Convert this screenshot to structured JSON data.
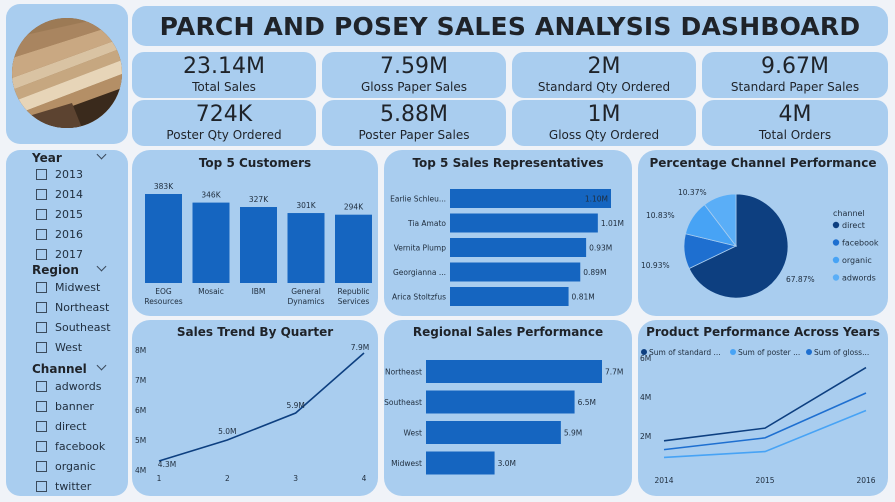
{
  "title": "PARCH AND POSEY SALES ANALYSIS DASHBOARD",
  "kpis": [
    {
      "value": "23.14M",
      "label": "Total Sales"
    },
    {
      "value": "7.59M",
      "label": "Gloss Paper Sales"
    },
    {
      "value": "2M",
      "label": "Standard Qty Ordered"
    },
    {
      "value": "9.67M",
      "label": "Standard Paper Sales"
    },
    {
      "value": "724K",
      "label": "Poster Qty Ordered"
    },
    {
      "value": "5.88M",
      "label": "Poster Paper Sales"
    },
    {
      "value": "1M",
      "label": "Gloss Qty Ordered"
    },
    {
      "value": "4M",
      "label": "Total Orders"
    }
  ],
  "slicers": {
    "year": {
      "title": "Year",
      "options": [
        "2013",
        "2014",
        "2015",
        "2016",
        "2017"
      ]
    },
    "region": {
      "title": "Region",
      "options": [
        "Midwest",
        "Northeast",
        "Southeast",
        "West"
      ]
    },
    "channel": {
      "title": "Channel",
      "options": [
        "adwords",
        "banner",
        "direct",
        "facebook",
        "organic",
        "twitter"
      ]
    }
  },
  "colors": {
    "panel": "#a9cdef",
    "bar": "#1565c0",
    "dark": "#0d3f80",
    "mid": "#1e6fd0",
    "light": "#47a3f5"
  },
  "chart_data": [
    {
      "id": "customers",
      "type": "bar",
      "title": "Top 5 Customers",
      "categories": [
        "EOG Resources",
        "Mosaic",
        "IBM",
        "General Dynamics",
        "Republic Services"
      ],
      "category_lines": [
        [
          "EOG",
          "Resources"
        ],
        [
          "Mosaic"
        ],
        [
          "IBM"
        ],
        [
          "General",
          "Dynamics"
        ],
        [
          "Republic",
          "Services"
        ]
      ],
      "values": [
        383,
        346,
        327,
        301,
        294
      ],
      "data_labels": [
        "383K",
        "346K",
        "327K",
        "301K",
        "294K"
      ]
    },
    {
      "id": "reps",
      "type": "bar",
      "orientation": "horizontal",
      "title": "Top 5 Sales Representatives",
      "categories": [
        "Earlie Schleu...",
        "Tia Amato",
        "Vernita Plump",
        "Georgianna ...",
        "Arica Stoltzfus"
      ],
      "values": [
        1.1,
        1.01,
        0.93,
        0.89,
        0.81
      ],
      "data_labels": [
        "1.10M",
        "1.01M",
        "0.93M",
        "0.89M",
        "0.81M"
      ]
    },
    {
      "id": "channel",
      "type": "pie",
      "title": "Percentage Channel Performance",
      "legend_title": "channel",
      "categories": [
        "direct",
        "facebook",
        "organic",
        "adwords"
      ],
      "values": [
        67.87,
        10.93,
        10.83,
        10.37
      ],
      "data_labels": [
        "67.87%",
        "10.93%",
        "10.83%",
        "10.37%"
      ],
      "colors": [
        "#0d3f80",
        "#1e6fd0",
        "#47a3f5",
        "#5aaef7"
      ],
      "legend": "right"
    },
    {
      "id": "trend",
      "type": "line",
      "title": "Sales Trend By Quarter",
      "x": [
        1,
        2,
        3,
        4
      ],
      "values": [
        4.3,
        5.0,
        5.9,
        7.9
      ],
      "data_labels": [
        "4.3M",
        "5.0M",
        "5.9M",
        "7.9M"
      ],
      "yticks": [
        "4M",
        "5M",
        "6M",
        "7M",
        "8M"
      ],
      "ylim": [
        4,
        8
      ]
    },
    {
      "id": "regional",
      "type": "bar",
      "orientation": "horizontal",
      "title": "Regional Sales Performance",
      "categories": [
        "Northeast",
        "Southeast",
        "West",
        "Midwest"
      ],
      "values": [
        7.7,
        6.5,
        5.9,
        3.0
      ],
      "data_labels": [
        "7.7M",
        "6.5M",
        "5.9M",
        "3.0M"
      ]
    },
    {
      "id": "product",
      "type": "line",
      "title": "Product Performance Across Years",
      "x": [
        "2014",
        "2015",
        "2016"
      ],
      "series": [
        {
          "legend": "Sum of standard ...",
          "values": [
            1.75,
            2.4,
            5.5
          ],
          "color": "#0d3f80"
        },
        {
          "legend": "Sum of poster ...",
          "values": [
            0.9,
            1.2,
            3.3
          ],
          "color": "#47a3f5"
        },
        {
          "legend": "Sum of gloss...",
          "values": [
            1.3,
            1.9,
            4.2
          ],
          "color": "#1e6fd0"
        }
      ],
      "yticks": [
        "2M",
        "4M",
        "6M"
      ],
      "ylim": [
        0,
        6.4
      ],
      "legend": "top-left"
    }
  ]
}
